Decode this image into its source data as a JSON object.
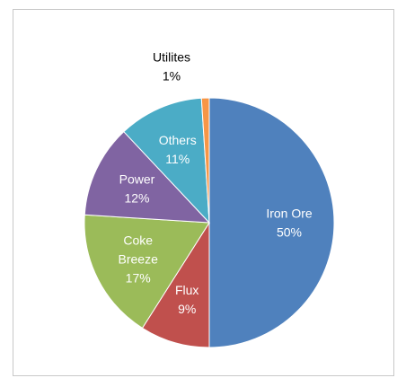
{
  "chart_data": {
    "type": "pie",
    "title": "",
    "start_angle_deg": 0,
    "direction": "clockwise",
    "legend": "none",
    "slices": [
      {
        "label": "Iron Ore",
        "value": 50,
        "display": "50%",
        "color": "#4F81BD",
        "label_color": "#ffffff",
        "label_position": "inside"
      },
      {
        "label": "Flux",
        "value": 9,
        "display": "9%",
        "color": "#C0504D",
        "label_color": "#ffffff",
        "label_position": "inside"
      },
      {
        "label": "Coke Breeze",
        "label_lines": [
          "Coke",
          "Breeze"
        ],
        "value": 17,
        "display": "17%",
        "color": "#9BBB59",
        "label_color": "#ffffff",
        "label_position": "inside"
      },
      {
        "label": "Power",
        "value": 12,
        "display": "12%",
        "color": "#8064A2",
        "label_color": "#ffffff",
        "label_position": "inside"
      },
      {
        "label": "Others",
        "value": 11,
        "display": "11%",
        "color": "#4BACC6",
        "label_color": "#ffffff",
        "label_position": "inside"
      },
      {
        "label": "Utilites",
        "value": 1,
        "display": "1%",
        "color": "#F79646",
        "label_color": "#000000",
        "label_position": "outside"
      }
    ]
  }
}
